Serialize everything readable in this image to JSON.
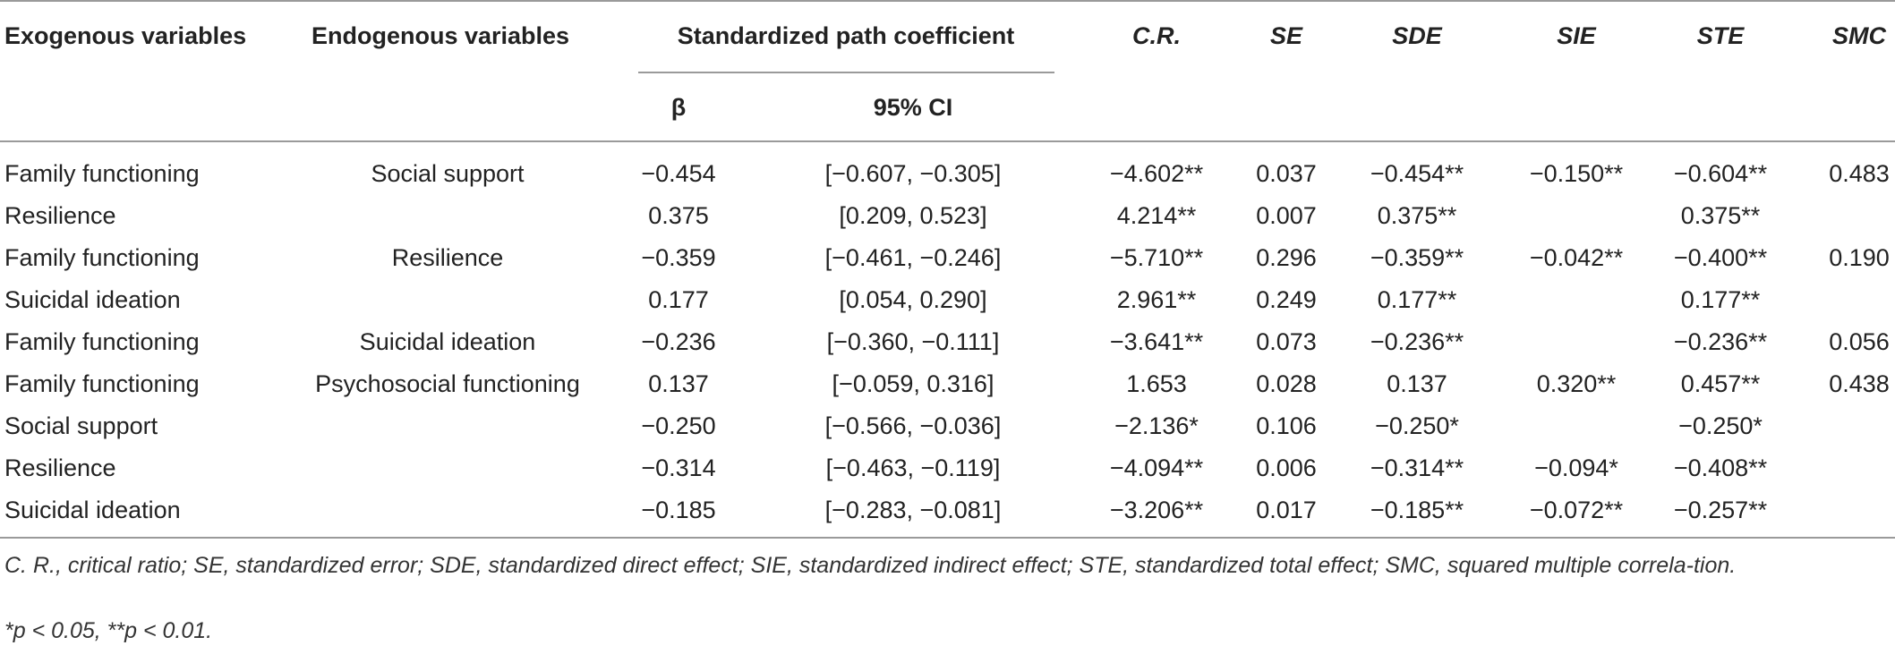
{
  "table": {
    "headers": {
      "exogenous": "Exogenous variables",
      "endogenous": "Endogenous variables",
      "spc": "Standardized path coefficient",
      "beta": "β",
      "ci": "95% CI",
      "cr": "C.R.",
      "se": "SE",
      "sde": "SDE",
      "sie": "SIE",
      "ste": "STE",
      "smc": "SMC"
    },
    "rows": [
      {
        "exogenous": "Family functioning",
        "endogenous": "Social support",
        "beta": "−0.454",
        "ci": "[−0.607, −0.305]",
        "cr": "−4.602**",
        "se": "0.037",
        "sde": "−0.454**",
        "sie": "−0.150**",
        "ste": "−0.604**",
        "smc": "0.483"
      },
      {
        "exogenous": "Resilience",
        "endogenous": "",
        "beta": "0.375",
        "ci": "[0.209, 0.523]",
        "cr": "4.214**",
        "se": "0.007",
        "sde": "0.375**",
        "sie": "",
        "ste": "0.375**",
        "smc": ""
      },
      {
        "exogenous": "Family functioning",
        "endogenous": "Resilience",
        "beta": "−0.359",
        "ci": "[−0.461, −0.246]",
        "cr": "−5.710**",
        "se": "0.296",
        "sde": "−0.359**",
        "sie": "−0.042**",
        "ste": "−0.400**",
        "smc": "0.190"
      },
      {
        "exogenous": "Suicidal ideation",
        "endogenous": "",
        "beta": "0.177",
        "ci": "[0.054, 0.290]",
        "cr": "2.961**",
        "se": "0.249",
        "sde": "0.177**",
        "sie": "",
        "ste": "0.177**",
        "smc": ""
      },
      {
        "exogenous": "Family functioning",
        "endogenous": "Suicidal ideation",
        "beta": "−0.236",
        "ci": "[−0.360, −0.111]",
        "cr": "−3.641**",
        "se": "0.073",
        "sde": "−0.236**",
        "sie": "",
        "ste": "−0.236**",
        "smc": "0.056"
      },
      {
        "exogenous": "Family functioning",
        "endogenous": "Psychosocial functioning",
        "beta": "0.137",
        "ci": "[−0.059, 0.316]",
        "cr": "1.653",
        "se": "0.028",
        "sde": "0.137",
        "sie": "0.320**",
        "ste": "0.457**",
        "smc": "0.438"
      },
      {
        "exogenous": "Social support",
        "endogenous": "",
        "beta": "−0.250",
        "ci": "[−0.566, −0.036]",
        "cr": "−2.136*",
        "se": "0.106",
        "sde": "−0.250*",
        "sie": "",
        "ste": "−0.250*",
        "smc": ""
      },
      {
        "exogenous": "Resilience",
        "endogenous": "",
        "beta": "−0.314",
        "ci": "[−0.463, −0.119]",
        "cr": "−4.094**",
        "se": "0.006",
        "sde": "−0.314**",
        "sie": "−0.094*",
        "ste": "−0.408**",
        "smc": ""
      },
      {
        "exogenous": "Suicidal ideation",
        "endogenous": "",
        "beta": "−0.185",
        "ci": "[−0.283, −0.081]",
        "cr": "−3.206**",
        "se": "0.017",
        "sde": "−0.185**",
        "sie": "−0.072**",
        "ste": "−0.257**",
        "smc": ""
      }
    ]
  },
  "footnotes": {
    "abbreviations": "C. R., critical ratio; SE, standardized error; SDE, standardized direct effect; SIE, standardized indirect effect; STE, standardized total effect; SMC, squared multiple correla-tion.",
    "significance": "*p < 0.05, **p < 0.01."
  }
}
